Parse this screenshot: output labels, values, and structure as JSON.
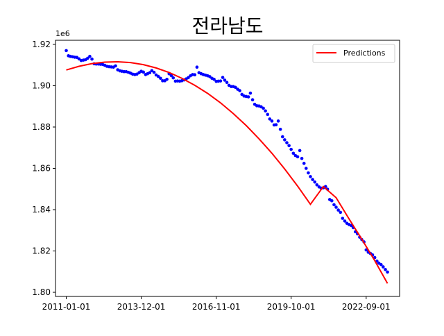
{
  "chart_data": {
    "type": "scatter",
    "title": "전라남도",
    "y_offset_label": "1e6",
    "xlim": [
      "2010-08-01",
      "2023-12-20"
    ],
    "ylim": [
      1798000,
      1922000
    ],
    "grid": false,
    "legend_position": "top-right",
    "x_ticks": [
      {
        "date": "2011-01-01",
        "label": "2011-01-01"
      },
      {
        "date": "2013-12-01",
        "label": "2013-12-01"
      },
      {
        "date": "2016-11-01",
        "label": "2016-11-01"
      },
      {
        "date": "2019-10-01",
        "label": "2019-10-01"
      },
      {
        "date": "2022-09-01",
        "label": "2022-09-01"
      }
    ],
    "y_ticks": [
      {
        "value": 1800000,
        "label": "1.80"
      },
      {
        "value": 1820000,
        "label": "1.82"
      },
      {
        "value": 1840000,
        "label": "1.84"
      },
      {
        "value": 1860000,
        "label": "1.86"
      },
      {
        "value": 1880000,
        "label": "1.88"
      },
      {
        "value": 1900000,
        "label": "1.90"
      },
      {
        "value": 1920000,
        "label": "1.92"
      }
    ],
    "series": [
      {
        "kind": "scatter",
        "color": "#0000ff",
        "points": [
          [
            "2011-01-01",
            1917000
          ],
          [
            "2011-02-01",
            1914500
          ],
          [
            "2011-03-01",
            1914200
          ],
          [
            "2011-04-01",
            1914000
          ],
          [
            "2011-05-01",
            1913800
          ],
          [
            "2011-06-01",
            1913700
          ],
          [
            "2011-07-01",
            1913000
          ],
          [
            "2011-08-01",
            1912200
          ],
          [
            "2011-09-01",
            1912400
          ],
          [
            "2011-10-01",
            1912600
          ],
          [
            "2011-11-01",
            1913300
          ],
          [
            "2011-12-01",
            1914200
          ],
          [
            "2012-01-01",
            1912900
          ],
          [
            "2012-02-01",
            1910600
          ],
          [
            "2012-03-01",
            1910500
          ],
          [
            "2012-04-01",
            1910500
          ],
          [
            "2012-05-01",
            1910400
          ],
          [
            "2012-06-01",
            1910300
          ],
          [
            "2012-07-01",
            1909900
          ],
          [
            "2012-08-01",
            1909400
          ],
          [
            "2012-09-01",
            1909200
          ],
          [
            "2012-10-01",
            1909100
          ],
          [
            "2012-11-01",
            1909000
          ],
          [
            "2012-12-01",
            1909600
          ],
          [
            "2013-01-01",
            1907700
          ],
          [
            "2013-02-01",
            1907200
          ],
          [
            "2013-03-01",
            1907000
          ],
          [
            "2013-04-01",
            1906800
          ],
          [
            "2013-05-01",
            1906800
          ],
          [
            "2013-06-01",
            1906500
          ],
          [
            "2013-07-01",
            1906100
          ],
          [
            "2013-08-01",
            1905600
          ],
          [
            "2013-09-01",
            1905400
          ],
          [
            "2013-10-01",
            1905600
          ],
          [
            "2013-11-01",
            1906300
          ],
          [
            "2013-12-01",
            1907000
          ],
          [
            "2014-01-01",
            1906600
          ],
          [
            "2014-02-01",
            1905400
          ],
          [
            "2014-03-01",
            1905800
          ],
          [
            "2014-04-01",
            1906300
          ],
          [
            "2014-05-01",
            1907300
          ],
          [
            "2014-06-01",
            1906500
          ],
          [
            "2014-07-01",
            1905200
          ],
          [
            "2014-08-01",
            1904500
          ],
          [
            "2014-09-01",
            1903600
          ],
          [
            "2014-10-01",
            1902400
          ],
          [
            "2014-11-01",
            1902400
          ],
          [
            "2014-12-01",
            1903100
          ],
          [
            "2015-01-01",
            1905800
          ],
          [
            "2015-02-01",
            1904900
          ],
          [
            "2015-03-01",
            1903800
          ],
          [
            "2015-04-01",
            1902200
          ],
          [
            "2015-05-01",
            1902300
          ],
          [
            "2015-06-01",
            1902200
          ],
          [
            "2015-07-01",
            1902400
          ],
          [
            "2015-08-01",
            1902800
          ],
          [
            "2015-09-01",
            1903300
          ],
          [
            "2015-10-01",
            1903900
          ],
          [
            "2015-11-01",
            1904800
          ],
          [
            "2015-12-01",
            1905400
          ],
          [
            "2016-01-01",
            1905300
          ],
          [
            "2016-02-01",
            1909000
          ],
          [
            "2016-03-01",
            1906300
          ],
          [
            "2016-04-01",
            1905800
          ],
          [
            "2016-05-01",
            1905400
          ],
          [
            "2016-06-01",
            1905100
          ],
          [
            "2016-07-01",
            1904800
          ],
          [
            "2016-08-01",
            1904400
          ],
          [
            "2016-09-01",
            1903600
          ],
          [
            "2016-10-01",
            1903100
          ],
          [
            "2016-11-01",
            1902100
          ],
          [
            "2016-12-01",
            1902200
          ],
          [
            "2017-01-01",
            1902300
          ],
          [
            "2017-02-01",
            1904000
          ],
          [
            "2017-03-01",
            1902700
          ],
          [
            "2017-04-01",
            1901600
          ],
          [
            "2017-05-01",
            1900200
          ],
          [
            "2017-06-01",
            1899600
          ],
          [
            "2017-07-01",
            1899600
          ],
          [
            "2017-08-01",
            1899200
          ],
          [
            "2017-09-01",
            1898300
          ],
          [
            "2017-10-01",
            1897600
          ],
          [
            "2017-11-01",
            1895800
          ],
          [
            "2017-12-01",
            1895000
          ],
          [
            "2018-01-01",
            1894800
          ],
          [
            "2018-02-01",
            1894600
          ],
          [
            "2018-03-01",
            1896400
          ],
          [
            "2018-04-01",
            1893200
          ],
          [
            "2018-05-01",
            1891000
          ],
          [
            "2018-06-01",
            1890300
          ],
          [
            "2018-07-01",
            1890200
          ],
          [
            "2018-08-01",
            1889800
          ],
          [
            "2018-09-01",
            1889100
          ],
          [
            "2018-10-01",
            1887800
          ],
          [
            "2018-11-01",
            1886100
          ],
          [
            "2018-12-01",
            1883900
          ],
          [
            "2019-01-01",
            1882900
          ],
          [
            "2019-02-01",
            1881000
          ],
          [
            "2019-03-01",
            1881100
          ],
          [
            "2019-04-01",
            1882900
          ],
          [
            "2019-05-01",
            1878900
          ],
          [
            "2019-06-01",
            1875300
          ],
          [
            "2019-07-01",
            1873800
          ],
          [
            "2019-08-01",
            1872400
          ],
          [
            "2019-09-01",
            1871000
          ],
          [
            "2019-10-01",
            1869200
          ],
          [
            "2019-11-01",
            1867300
          ],
          [
            "2019-12-01",
            1866200
          ],
          [
            "2020-01-01",
            1865600
          ],
          [
            "2020-02-01",
            1868600
          ],
          [
            "2020-03-01",
            1864800
          ],
          [
            "2020-04-01",
            1862400
          ],
          [
            "2020-05-01",
            1860000
          ],
          [
            "2020-06-01",
            1857800
          ],
          [
            "2020-07-01",
            1856000
          ],
          [
            "2020-08-01",
            1854600
          ],
          [
            "2020-09-01",
            1853400
          ],
          [
            "2020-10-01",
            1852000
          ],
          [
            "2020-11-01",
            1851000
          ],
          [
            "2020-12-01",
            1850400
          ],
          [
            "2021-01-01",
            1850600
          ],
          [
            "2021-02-01",
            1851200
          ],
          [
            "2021-03-01",
            1849900
          ],
          [
            "2021-04-01",
            1844900
          ],
          [
            "2021-05-01",
            1844300
          ],
          [
            "2021-06-01",
            1842400
          ],
          [
            "2021-07-01",
            1841200
          ],
          [
            "2021-08-01",
            1839800
          ],
          [
            "2021-09-01",
            1838700
          ],
          [
            "2021-10-01",
            1835800
          ],
          [
            "2021-11-01",
            1834500
          ],
          [
            "2021-12-01",
            1833400
          ],
          [
            "2022-01-01",
            1832800
          ],
          [
            "2022-02-01",
            1832300
          ],
          [
            "2022-03-01",
            1831300
          ],
          [
            "2022-04-01",
            1829300
          ],
          [
            "2022-05-01",
            1828300
          ],
          [
            "2022-06-01",
            1826700
          ],
          [
            "2022-07-01",
            1825500
          ],
          [
            "2022-08-01",
            1824400
          ],
          [
            "2022-09-01",
            1820500
          ],
          [
            "2022-10-01",
            1819400
          ],
          [
            "2022-11-01",
            1818800
          ],
          [
            "2022-12-01",
            1818100
          ],
          [
            "2023-01-01",
            1816800
          ],
          [
            "2023-02-01",
            1815100
          ],
          [
            "2023-03-01",
            1814100
          ],
          [
            "2023-04-01",
            1813400
          ],
          [
            "2023-05-01",
            1812300
          ],
          [
            "2023-06-01",
            1811000
          ],
          [
            "2023-07-01",
            1809800
          ]
        ]
      },
      {
        "name": "Predictions",
        "kind": "line",
        "color": "#ff0000",
        "points": [
          [
            "2011-01-01",
            1907600
          ],
          [
            "2011-07-01",
            1909400
          ],
          [
            "2012-01-01",
            1910700
          ],
          [
            "2012-07-01",
            1911400
          ],
          [
            "2013-01-01",
            1911600
          ],
          [
            "2013-07-01",
            1911200
          ],
          [
            "2014-01-01",
            1910200
          ],
          [
            "2014-07-01",
            1908600
          ],
          [
            "2015-01-01",
            1906400
          ],
          [
            "2015-07-01",
            1903600
          ],
          [
            "2016-01-01",
            1900200
          ],
          [
            "2016-07-01",
            1896300
          ],
          [
            "2017-01-01",
            1891700
          ],
          [
            "2017-07-01",
            1886500
          ],
          [
            "2018-01-01",
            1880700
          ],
          [
            "2018-07-01",
            1874300
          ],
          [
            "2019-01-01",
            1867300
          ],
          [
            "2019-07-01",
            1859700
          ],
          [
            "2020-01-01",
            1851400
          ],
          [
            "2020-07-01",
            1842600
          ],
          [
            "2021-01-01",
            1851200
          ],
          [
            "2021-07-01",
            1845800
          ],
          [
            "2022-01-01",
            1835500
          ],
          [
            "2022-07-01",
            1825700
          ],
          [
            "2023-01-01",
            1815300
          ],
          [
            "2023-07-01",
            1804300
          ]
        ]
      }
    ]
  }
}
